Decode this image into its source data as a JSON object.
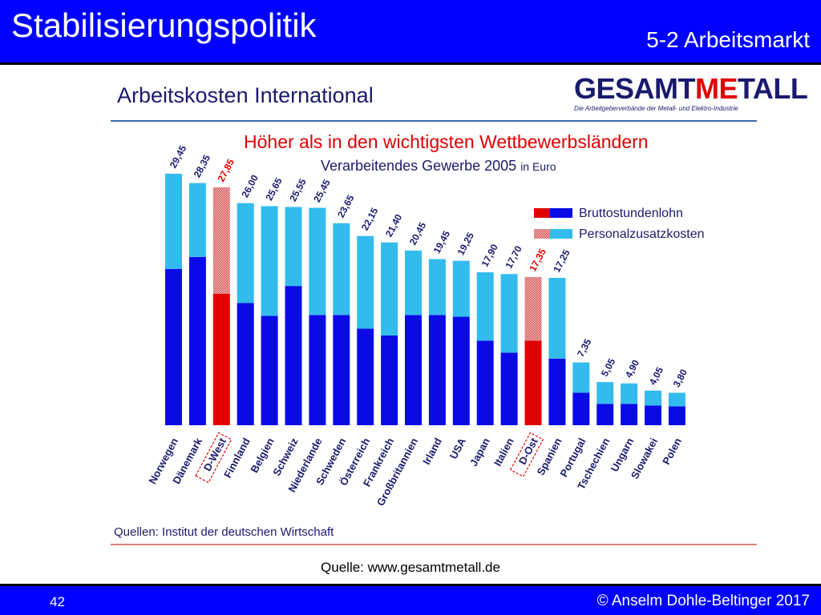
{
  "slide": {
    "title": "Stabilisierungspolitik",
    "section": "5-2 Arbeitsmarkt",
    "source": "Quelle: www.gesamtmetall.de",
    "page_number": "42",
    "copyright": "© Anselm Dohle-Beltinger 2017"
  },
  "logo": {
    "text_start": "GESAMT",
    "text_mid": "ME",
    "text_end": "TALL",
    "tagline": "Die Arbeitgeberverbände der Metall- und Elektro-Industrie"
  },
  "colors": {
    "header_blue": "#0000ff",
    "base_blue": "#0a0ae6",
    "extra_cyan": "#33bbee",
    "base_red": "#e00000",
    "extra_hatched": "#e07a7a",
    "label_blue": "#1a1a6e",
    "label_red": "#e00000"
  },
  "chart_data": {
    "type": "bar",
    "stacked": true,
    "title": "Arbeitskosten International",
    "subtitle": "Höher als in den wichtigsten Wettbewerbsländern",
    "note_main": "Verarbeitendes Gewerbe 2005",
    "note_unit": "in Euro",
    "source": "Quellen: Institut der deutschen Wirtschaft",
    "legend": [
      "Bruttostundenlohn",
      "Personalzusatzkosten"
    ],
    "legend_position": "top-right",
    "grid": false,
    "ylim": [
      0,
      30
    ],
    "categories": [
      "Norwegen",
      "Dänemark",
      "D-West",
      "Finnland",
      "Belgien",
      "Schweiz",
      "Niederlande",
      "Schweden",
      "Österreich",
      "Frankreich",
      "Großbritannien",
      "Irland",
      "USA",
      "Japan",
      "Italien",
      "D-Ost",
      "Spanien",
      "Portugal",
      "Tschechien",
      "Ungarn",
      "Slowakei",
      "Polen"
    ],
    "highlighted": [
      "D-West",
      "D-Ost"
    ],
    "value_labels": [
      "29,45",
      "28,35",
      "27,85",
      "26,00",
      "25,65",
      "25,55",
      "25,45",
      "23,65",
      "22,15",
      "21,40",
      "20,45",
      "19,45",
      "19,25",
      "17,90",
      "17,70",
      "17,35",
      "17,25",
      "7,35",
      "5,05",
      "4,90",
      "4,05",
      "3,80"
    ],
    "series": [
      {
        "name": "Bruttostundenlohn",
        "values": [
          18.3,
          19.7,
          15.4,
          14.3,
          12.8,
          16.3,
          12.9,
          12.9,
          11.3,
          10.5,
          12.9,
          12.9,
          12.7,
          9.9,
          8.5,
          9.9,
          7.8,
          3.8,
          2.5,
          2.5,
          2.3,
          2.2
        ]
      },
      {
        "name": "Personalzusatzkosten",
        "values": [
          11.15,
          8.65,
          12.45,
          11.7,
          12.85,
          9.25,
          12.55,
          10.75,
          10.85,
          10.9,
          7.55,
          6.55,
          6.55,
          8.0,
          9.2,
          7.45,
          9.45,
          3.55,
          2.55,
          2.4,
          1.75,
          1.6
        ]
      }
    ]
  }
}
